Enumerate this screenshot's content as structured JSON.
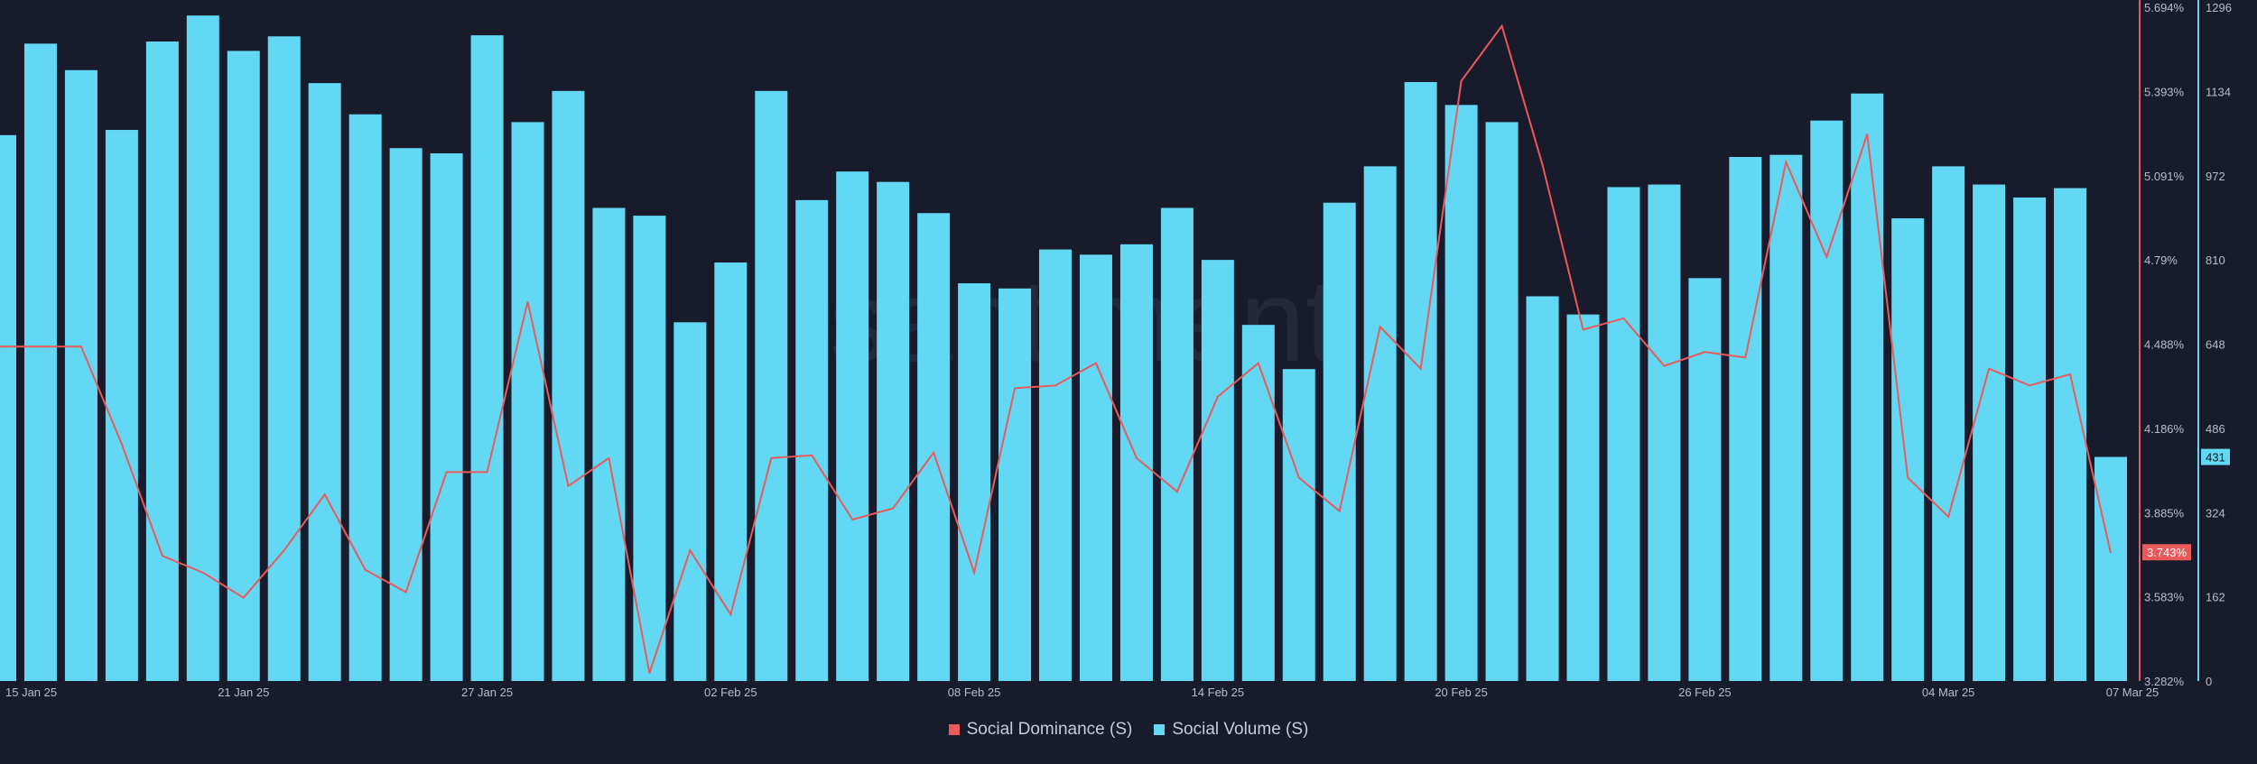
{
  "chart_data": {
    "type": "bar+line",
    "title": "",
    "watermark": "santiment",
    "x_tick_labels": [
      "15 Jan 25",
      "21 Jan 25",
      "27 Jan 25",
      "02 Feb 25",
      "08 Feb 25",
      "14 Feb 25",
      "20 Feb 25",
      "26 Feb 25",
      "04 Mar 25",
      "07 Mar 25"
    ],
    "series": [
      {
        "name": "Social Volume (S)",
        "kind": "bar",
        "axis": "right",
        "color": "#62d8f5",
        "values": [
          1050,
          1226,
          1175,
          1060,
          1230,
          1280,
          1212,
          1240,
          1150,
          1090,
          1025,
          1015,
          1242,
          1075,
          1135,
          910,
          895,
          690,
          805,
          1135,
          925,
          980,
          960,
          900,
          765,
          755,
          830,
          820,
          840,
          910,
          810,
          685,
          600,
          920,
          990,
          1152,
          1108,
          1075,
          740,
          705,
          950,
          955,
          775,
          1008,
          1012,
          1078,
          1130,
          890,
          990,
          955,
          930,
          948,
          431
        ]
      },
      {
        "name": "Social Dominance (S)",
        "kind": "line",
        "axis": "left",
        "color": "#ea5a5a",
        "values": [
          4.479,
          4.479,
          4.479,
          4.13,
          3.73,
          3.67,
          3.58,
          3.75,
          3.95,
          3.68,
          3.6,
          4.03,
          4.03,
          4.64,
          3.98,
          4.08,
          3.31,
          3.75,
          3.52,
          4.08,
          4.09,
          3.86,
          3.9,
          4.1,
          3.67,
          4.33,
          4.34,
          4.42,
          4.08,
          3.96,
          4.3,
          4.42,
          4.01,
          3.89,
          4.55,
          4.4,
          5.43,
          5.627,
          5.13,
          4.54,
          4.58,
          4.41,
          4.46,
          4.44,
          5.14,
          4.8,
          5.24,
          4.01,
          3.87,
          4.4,
          4.34,
          4.38,
          3.74
        ]
      }
    ],
    "y_left": {
      "range": [
        3.282,
        5.694
      ],
      "tick_labels": [
        "5.694%",
        "5.393%",
        "5.091%",
        "4.79%",
        "4.488%",
        "4.186%",
        "3.885%",
        "3.583%",
        "3.282%"
      ],
      "current_value_label": "3.743%",
      "current_value": 3.743
    },
    "y_right": {
      "range": [
        0,
        1296
      ],
      "tick_labels": [
        "1296",
        "1134",
        "972",
        "810",
        "648",
        "486",
        "324",
        "162",
        "0"
      ],
      "current_value_label": "431",
      "current_value": 431
    },
    "grid": false,
    "legend_position": "bottom-center"
  },
  "legend": [
    {
      "label": "Social Dominance (S)",
      "color": "#ea5a5a"
    },
    {
      "label": "Social Volume (S)",
      "color": "#62d8f5"
    }
  ],
  "colors": {
    "background": "#181b2b",
    "axis_text": "#b8bdca",
    "watermark": "#23283a"
  }
}
